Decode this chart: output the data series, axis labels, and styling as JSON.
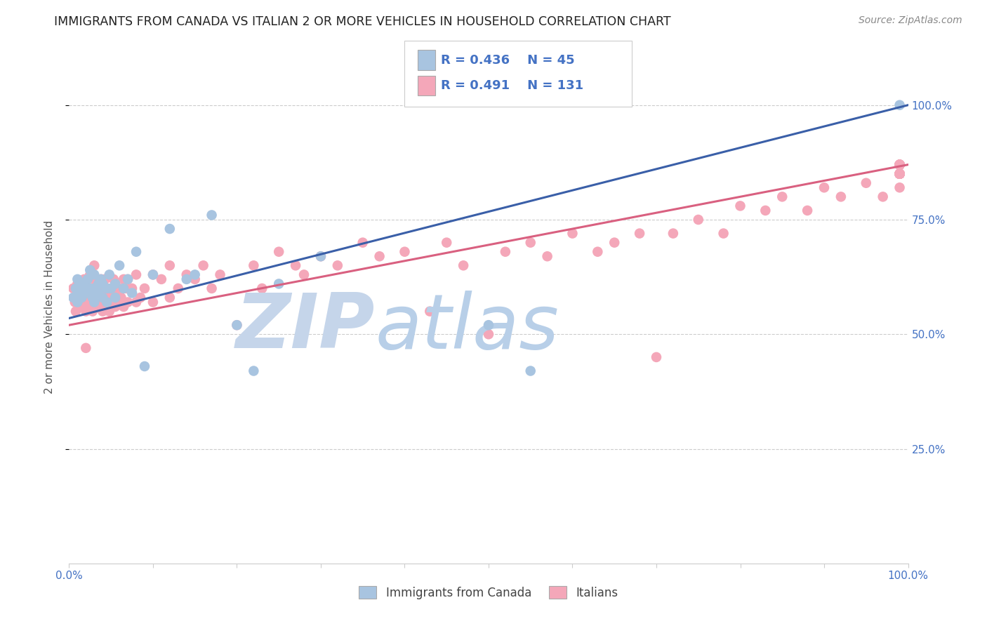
{
  "title": "IMMIGRANTS FROM CANADA VS ITALIAN 2 OR MORE VEHICLES IN HOUSEHOLD CORRELATION CHART",
  "source": "Source: ZipAtlas.com",
  "ylabel": "2 or more Vehicles in Household",
  "canada_R": 0.436,
  "canada_N": 45,
  "italian_R": 0.491,
  "italian_N": 131,
  "canada_color": "#a8c4e0",
  "italian_color": "#f4a7b9",
  "canada_line_color": "#3a5fa8",
  "italian_line_color": "#d96080",
  "legend_text_color": "#4472c4",
  "title_color": "#222222",
  "source_color": "#888888",
  "background_color": "#ffffff",
  "grid_color": "#cccccc",
  "watermark_zip_color": "#c0cfe8",
  "watermark_atlas_color": "#b8cfe8",
  "xlim": [
    0.0,
    1.0
  ],
  "ylim": [
    0.0,
    1.12
  ],
  "ytick_positions": [
    0.25,
    0.5,
    0.75,
    1.0
  ],
  "ytick_labels": [
    "25.0%",
    "50.0%",
    "75.0%",
    "100.0%"
  ],
  "canada_line_x0": 0.0,
  "canada_line_y0": 0.535,
  "canada_line_x1": 1.0,
  "canada_line_y1": 1.0,
  "italian_line_x0": 0.0,
  "italian_line_y0": 0.52,
  "italian_line_x1": 1.0,
  "italian_line_y1": 0.87,
  "canada_scatter_x": [
    0.005,
    0.008,
    0.01,
    0.01,
    0.012,
    0.015,
    0.015,
    0.018,
    0.02,
    0.022,
    0.025,
    0.025,
    0.028,
    0.03,
    0.03,
    0.03,
    0.035,
    0.035,
    0.038,
    0.04,
    0.04,
    0.045,
    0.045,
    0.048,
    0.05,
    0.055,
    0.055,
    0.06,
    0.065,
    0.07,
    0.075,
    0.08,
    0.09,
    0.1,
    0.12,
    0.14,
    0.15,
    0.17,
    0.2,
    0.22,
    0.25,
    0.3,
    0.5,
    0.55,
    0.99
  ],
  "canada_scatter_y": [
    0.58,
    0.6,
    0.57,
    0.62,
    0.59,
    0.58,
    0.61,
    0.6,
    0.59,
    0.62,
    0.6,
    0.64,
    0.58,
    0.6,
    0.57,
    0.63,
    0.61,
    0.59,
    0.62,
    0.58,
    0.61,
    0.6,
    0.57,
    0.63,
    0.6,
    0.58,
    0.61,
    0.65,
    0.6,
    0.62,
    0.59,
    0.68,
    0.43,
    0.63,
    0.73,
    0.62,
    0.63,
    0.76,
    0.52,
    0.42,
    0.61,
    0.67,
    0.52,
    0.42,
    1.0
  ],
  "italian_scatter_x": [
    0.005,
    0.007,
    0.008,
    0.01,
    0.01,
    0.012,
    0.013,
    0.015,
    0.015,
    0.017,
    0.018,
    0.02,
    0.02,
    0.02,
    0.022,
    0.022,
    0.025,
    0.025,
    0.025,
    0.027,
    0.028,
    0.03,
    0.03,
    0.03,
    0.032,
    0.033,
    0.035,
    0.035,
    0.037,
    0.038,
    0.04,
    0.04,
    0.04,
    0.042,
    0.043,
    0.045,
    0.045,
    0.047,
    0.048,
    0.05,
    0.05,
    0.052,
    0.053,
    0.055,
    0.055,
    0.057,
    0.06,
    0.06,
    0.062,
    0.065,
    0.065,
    0.068,
    0.07,
    0.07,
    0.075,
    0.08,
    0.08,
    0.085,
    0.09,
    0.1,
    0.1,
    0.11,
    0.12,
    0.12,
    0.13,
    0.14,
    0.15,
    0.16,
    0.17,
    0.18,
    0.2,
    0.22,
    0.23,
    0.25,
    0.27,
    0.28,
    0.3,
    0.32,
    0.35,
    0.37,
    0.4,
    0.43,
    0.45,
    0.47,
    0.5,
    0.52,
    0.55,
    0.57,
    0.6,
    0.63,
    0.65,
    0.68,
    0.7,
    0.72,
    0.75,
    0.78,
    0.8,
    0.83,
    0.85,
    0.88,
    0.9,
    0.92,
    0.95,
    0.97,
    0.99,
    0.99,
    0.99,
    0.99,
    0.99,
    0.99,
    0.99,
    0.99,
    0.99,
    0.99,
    0.99,
    0.99,
    0.99,
    0.99,
    0.99,
    0.99,
    0.99,
    0.99,
    0.99,
    0.99,
    0.99,
    0.99,
    0.99,
    0.99,
    0.99,
    0.99,
    0.99
  ],
  "italian_scatter_y": [
    0.6,
    0.57,
    0.55,
    0.58,
    0.61,
    0.57,
    0.6,
    0.56,
    0.6,
    0.58,
    0.62,
    0.47,
    0.55,
    0.6,
    0.57,
    0.62,
    0.56,
    0.6,
    0.63,
    0.58,
    0.55,
    0.58,
    0.62,
    0.65,
    0.57,
    0.6,
    0.56,
    0.6,
    0.58,
    0.62,
    0.57,
    0.6,
    0.55,
    0.58,
    0.62,
    0.56,
    0.6,
    0.58,
    0.55,
    0.57,
    0.6,
    0.58,
    0.62,
    0.56,
    0.6,
    0.58,
    0.57,
    0.6,
    0.58,
    0.56,
    0.62,
    0.6,
    0.57,
    0.62,
    0.6,
    0.57,
    0.63,
    0.58,
    0.6,
    0.57,
    0.63,
    0.62,
    0.58,
    0.65,
    0.6,
    0.63,
    0.62,
    0.65,
    0.6,
    0.63,
    0.52,
    0.65,
    0.6,
    0.68,
    0.65,
    0.63,
    0.67,
    0.65,
    0.7,
    0.67,
    0.68,
    0.55,
    0.7,
    0.65,
    0.5,
    0.68,
    0.7,
    0.67,
    0.72,
    0.68,
    0.7,
    0.72,
    0.45,
    0.72,
    0.75,
    0.72,
    0.78,
    0.77,
    0.8,
    0.77,
    0.82,
    0.8,
    0.83,
    0.8,
    0.85,
    0.82,
    0.87,
    0.85,
    0.87,
    0.85,
    0.87,
    0.85,
    0.87,
    0.85,
    0.87,
    0.85,
    0.87,
    0.85,
    0.87,
    0.85,
    0.87,
    0.85,
    0.87,
    0.85,
    0.87,
    0.85,
    0.87,
    0.85,
    0.87,
    0.85,
    0.87
  ]
}
